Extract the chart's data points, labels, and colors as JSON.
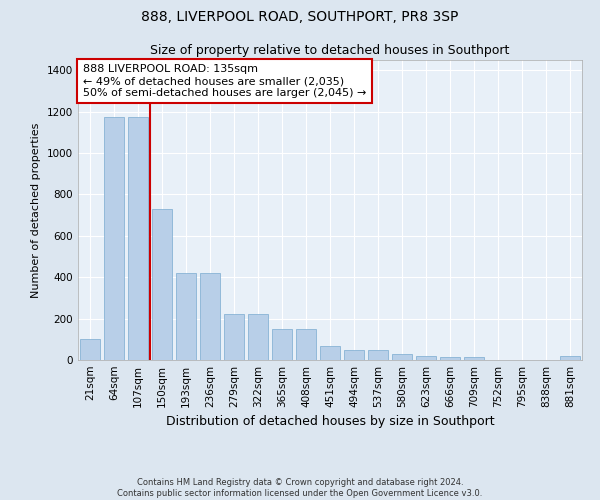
{
  "title": "888, LIVERPOOL ROAD, SOUTHPORT, PR8 3SP",
  "subtitle": "Size of property relative to detached houses in Southport",
  "xlabel": "Distribution of detached houses by size in Southport",
  "ylabel": "Number of detached properties",
  "categories": [
    "21sqm",
    "64sqm",
    "107sqm",
    "150sqm",
    "193sqm",
    "236sqm",
    "279sqm",
    "322sqm",
    "365sqm",
    "408sqm",
    "451sqm",
    "494sqm",
    "537sqm",
    "580sqm",
    "623sqm",
    "666sqm",
    "709sqm",
    "752sqm",
    "795sqm",
    "838sqm",
    "881sqm"
  ],
  "values": [
    100,
    1175,
    1175,
    730,
    420,
    420,
    220,
    220,
    148,
    148,
    67,
    50,
    47,
    30,
    18,
    13,
    13,
    0,
    0,
    0,
    20
  ],
  "bar_color": "#b8cfe8",
  "bar_edge_color": "#7aaad0",
  "vline_x": 2.5,
  "vline_color": "#cc0000",
  "annotation_text": "888 LIVERPOOL ROAD: 135sqm\n← 49% of detached houses are smaller (2,035)\n50% of semi-detached houses are larger (2,045) →",
  "annotation_box_color": "white",
  "annotation_box_edge_color": "#cc0000",
  "ylim": [
    0,
    1450
  ],
  "yticks": [
    0,
    200,
    400,
    600,
    800,
    1000,
    1200,
    1400
  ],
  "footer_line1": "Contains HM Land Registry data © Crown copyright and database right 2024.",
  "footer_line2": "Contains public sector information licensed under the Open Government Licence v3.0.",
  "bg_color": "#dce6f0",
  "plot_bg_color": "#e8f0f8",
  "grid_color": "white",
  "title_fontsize": 10,
  "subtitle_fontsize": 9,
  "xlabel_fontsize": 9,
  "ylabel_fontsize": 8,
  "tick_fontsize": 7.5,
  "annotation_fontsize": 8,
  "footer_fontsize": 6
}
